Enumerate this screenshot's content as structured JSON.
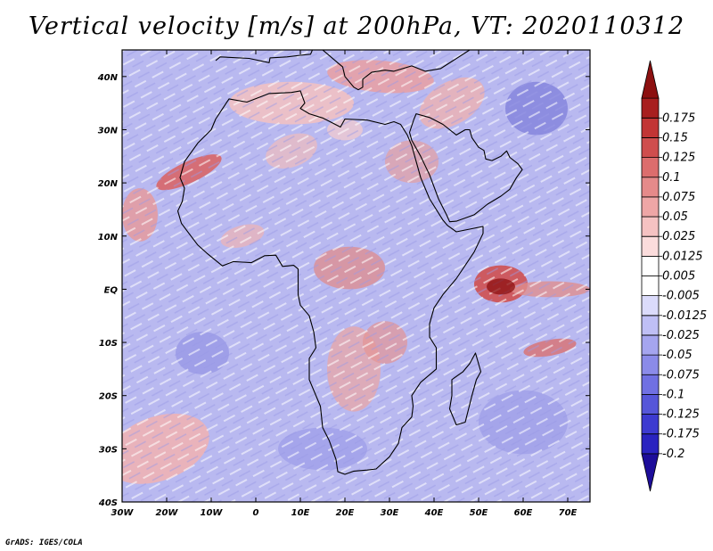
{
  "title": "Vertical velocity [m/s] at 200hPa, VT: 2020110312",
  "credit": "GrADS: IGES/COLA",
  "map": {
    "lon_range": [
      -30,
      75
    ],
    "lat_range": [
      -40,
      45
    ],
    "lon_ticks": [
      {
        "value": -30,
        "label": "30W"
      },
      {
        "value": -20,
        "label": "20W"
      },
      {
        "value": -10,
        "label": "10W"
      },
      {
        "value": 0,
        "label": "0"
      },
      {
        "value": 10,
        "label": "10E"
      },
      {
        "value": 20,
        "label": "20E"
      },
      {
        "value": 30,
        "label": "30E"
      },
      {
        "value": 40,
        "label": "40E"
      },
      {
        "value": 50,
        "label": "50E"
      },
      {
        "value": 60,
        "label": "60E"
      },
      {
        "value": 70,
        "label": "70E"
      }
    ],
    "lat_ticks": [
      {
        "value": 40,
        "label": "40N"
      },
      {
        "value": 30,
        "label": "30N"
      },
      {
        "value": 20,
        "label": "20N"
      },
      {
        "value": 10,
        "label": "10N"
      },
      {
        "value": 0,
        "label": "EQ"
      },
      {
        "value": -10,
        "label": "10S"
      },
      {
        "value": -20,
        "label": "20S"
      },
      {
        "value": -30,
        "label": "30S"
      },
      {
        "value": -40,
        "label": "40S"
      }
    ],
    "coastline": [
      [
        -17,
        21
      ],
      [
        -16,
        24
      ],
      [
        -13,
        27.5
      ],
      [
        -10,
        30
      ],
      [
        -9,
        32
      ],
      [
        -6,
        35.8
      ],
      [
        -2,
        35.2
      ],
      [
        3,
        36.8
      ],
      [
        8,
        37
      ],
      [
        10,
        37.3
      ],
      [
        11,
        35
      ],
      [
        10,
        34
      ],
      [
        12,
        33
      ],
      [
        15,
        32.2
      ],
      [
        19,
        30.5
      ],
      [
        20,
        32
      ],
      [
        25,
        31.8
      ],
      [
        29,
        31
      ],
      [
        31,
        31.5
      ],
      [
        32.5,
        31
      ],
      [
        34,
        29
      ],
      [
        35,
        27
      ],
      [
        37,
        21
      ],
      [
        39,
        17
      ],
      [
        42,
        13
      ],
      [
        43,
        12
      ],
      [
        45,
        10.8
      ],
      [
        51,
        11.8
      ],
      [
        51,
        10.5
      ],
      [
        49,
        7
      ],
      [
        45,
        2
      ],
      [
        42,
        -1
      ],
      [
        40,
        -3.5
      ],
      [
        39,
        -6.5
      ],
      [
        39,
        -9
      ],
      [
        40.5,
        -11
      ],
      [
        40.5,
        -15
      ],
      [
        37,
        -17.5
      ],
      [
        35,
        -20
      ],
      [
        35.3,
        -22
      ],
      [
        35,
        -24
      ],
      [
        32.8,
        -26
      ],
      [
        32,
        -29
      ],
      [
        30,
        -31.5
      ],
      [
        27,
        -33.8
      ],
      [
        25,
        -34
      ],
      [
        22,
        -34.2
      ],
      [
        20,
        -34.8
      ],
      [
        18.4,
        -34.3
      ],
      [
        18,
        -32
      ],
      [
        16.5,
        -28.5
      ],
      [
        15,
        -26
      ],
      [
        14.5,
        -22
      ],
      [
        12,
        -17
      ],
      [
        12,
        -13
      ],
      [
        13.5,
        -11
      ],
      [
        13,
        -8
      ],
      [
        12,
        -5
      ],
      [
        10,
        -3
      ],
      [
        9.5,
        -1
      ],
      [
        9.5,
        2
      ],
      [
        9.5,
        3.8
      ],
      [
        8.5,
        4.5
      ],
      [
        6,
        4.3
      ],
      [
        4.5,
        6.4
      ],
      [
        2,
        6.3
      ],
      [
        -1,
        5
      ],
      [
        -3,
        5.1
      ],
      [
        -5,
        5.2
      ],
      [
        -7.5,
        4.4
      ],
      [
        -11,
        6.8
      ],
      [
        -13,
        8.3
      ],
      [
        -15,
        10.5
      ],
      [
        -16.7,
        12.4
      ],
      [
        -17.5,
        14.7
      ],
      [
        -16.5,
        16.5
      ],
      [
        -16,
        19
      ],
      [
        -17,
        21
      ]
    ],
    "madagascar": [
      [
        49.3,
        -12
      ],
      [
        50.5,
        -15.5
      ],
      [
        49.5,
        -17
      ],
      [
        48.5,
        -20
      ],
      [
        47,
        -25
      ],
      [
        45,
        -25.5
      ],
      [
        43.5,
        -22.5
      ],
      [
        44,
        -20
      ],
      [
        44,
        -17
      ],
      [
        46.5,
        -15.5
      ],
      [
        48,
        -14
      ],
      [
        49.3,
        -12
      ]
    ],
    "arabia": [
      [
        34.5,
        29.5
      ],
      [
        35,
        28
      ],
      [
        37,
        25
      ],
      [
        39,
        21.5
      ],
      [
        41,
        17
      ],
      [
        42.8,
        14
      ],
      [
        43.5,
        12.7
      ],
      [
        45,
        12.8
      ],
      [
        49,
        14
      ],
      [
        52,
        16
      ],
      [
        55,
        17.5
      ],
      [
        57,
        18.8
      ],
      [
        58.5,
        21
      ],
      [
        59.8,
        22.5
      ],
      [
        58.8,
        23.6
      ],
      [
        57,
        24.8
      ],
      [
        56.3,
        26
      ],
      [
        55,
        25
      ],
      [
        53,
        24.2
      ],
      [
        51.6,
        24.5
      ],
      [
        51.2,
        26.1
      ],
      [
        50,
        26.7
      ],
      [
        48.5,
        28.5
      ],
      [
        48,
        30
      ],
      [
        47,
        30
      ],
      [
        45,
        29
      ],
      [
        42,
        31
      ],
      [
        39,
        32.3
      ],
      [
        36,
        33
      ],
      [
        35.5,
        32
      ],
      [
        34.5,
        29.5
      ]
    ],
    "europe": [
      [
        -9,
        43
      ],
      [
        -8,
        43.7
      ],
      [
        -1.5,
        43.4
      ],
      [
        3,
        42.6
      ],
      [
        3.2,
        43.5
      ],
      [
        7,
        43.7
      ],
      [
        10,
        44
      ],
      [
        12.3,
        44.2
      ],
      [
        13,
        45.6
      ],
      [
        15,
        45
      ],
      [
        19.5,
        41.8
      ],
      [
        20,
        40
      ],
      [
        22,
        38
      ],
      [
        23,
        37.5
      ],
      [
        24,
        38
      ],
      [
        24,
        39.5
      ],
      [
        26,
        40.8
      ],
      [
        29,
        41.2
      ],
      [
        31,
        41
      ],
      [
        35,
        42
      ],
      [
        38,
        41
      ],
      [
        41.5,
        41.5
      ],
      [
        48,
        45
      ]
    ]
  },
  "colorbar": {
    "colors": [
      "#1d0d9a",
      "#2a23c0",
      "#3d3ad0",
      "#5656d9",
      "#7070e2",
      "#8b8be9",
      "#a5a5ef",
      "#bfbff5",
      "#dbdbfb",
      "#ffffff",
      "#ffffff",
      "#fbdcdc",
      "#f5c2c2",
      "#eea6a6",
      "#e58a8a",
      "#dc6d6d",
      "#cf4e4e",
      "#c23535",
      "#a81f1f",
      "#8c1010"
    ],
    "labels": [
      "-0.2",
      "-0.175",
      "-0.125",
      "-0.1",
      "-0.075",
      "-0.05",
      "-0.025",
      "-0.0125",
      "-0.005",
      "0.005",
      "0.0125",
      "0.025",
      "0.05",
      "0.075",
      "0.1",
      "0.125",
      "0.15",
      "0.175"
    ]
  }
}
